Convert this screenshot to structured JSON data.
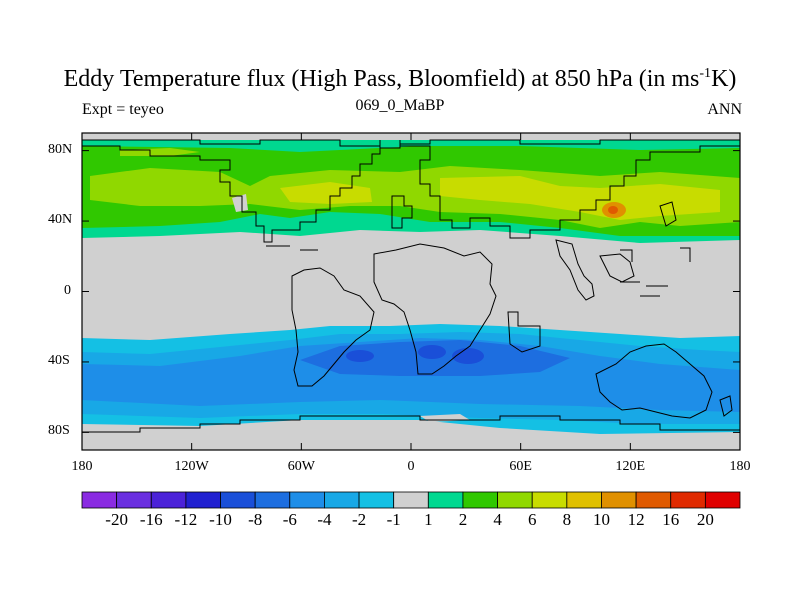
{
  "title": {
    "main_before": "Eddy Temperature flux (High Pass, Bloomfield) at 850 hPa (in ms",
    "main_sup": "-1",
    "main_after": "K)",
    "left": "Expt = teyeo",
    "center": "069_0_MaBP",
    "right": "ANN"
  },
  "axes": {
    "lat_labels": [
      "80N",
      "40N",
      "0",
      "40S",
      "80S"
    ],
    "lon_labels": [
      "180",
      "120W",
      "60W",
      "0",
      "60E",
      "120E",
      "180"
    ]
  },
  "colorbar": {
    "labels": [
      "-20",
      "-16",
      "-12",
      "-10",
      "-8",
      "-6",
      "-4",
      "-2",
      "-1",
      "1",
      "2",
      "4",
      "6",
      "8",
      "10",
      "12",
      "16",
      "20"
    ],
    "colors": [
      "#8a2be2",
      "#6a2fe0",
      "#4b22d8",
      "#2020d0",
      "#1a4fd8",
      "#1d6ee0",
      "#1e8ee8",
      "#18a8e6",
      "#14c0e4",
      "#d0d0d0",
      "#00d890",
      "#30c800",
      "#90d800",
      "#c8dc00",
      "#e0c000",
      "#e09000",
      "#e05a00",
      "#e02a00",
      "#e00000"
    ]
  },
  "map_colors": {
    "land_gray": "#d0d0d0",
    "nh_light": "#00d890",
    "nh_green": "#30c800",
    "nh_lime": "#90d800",
    "nh_yellow": "#c8dc00",
    "nh_hot": "#e09000",
    "sh_light": "#14c0e4",
    "sh_mid": "#18a8e6",
    "sh_blue": "#1e8ee8",
    "sh_deep": "#1d6ee0",
    "sh_core": "#1a4fd8"
  }
}
